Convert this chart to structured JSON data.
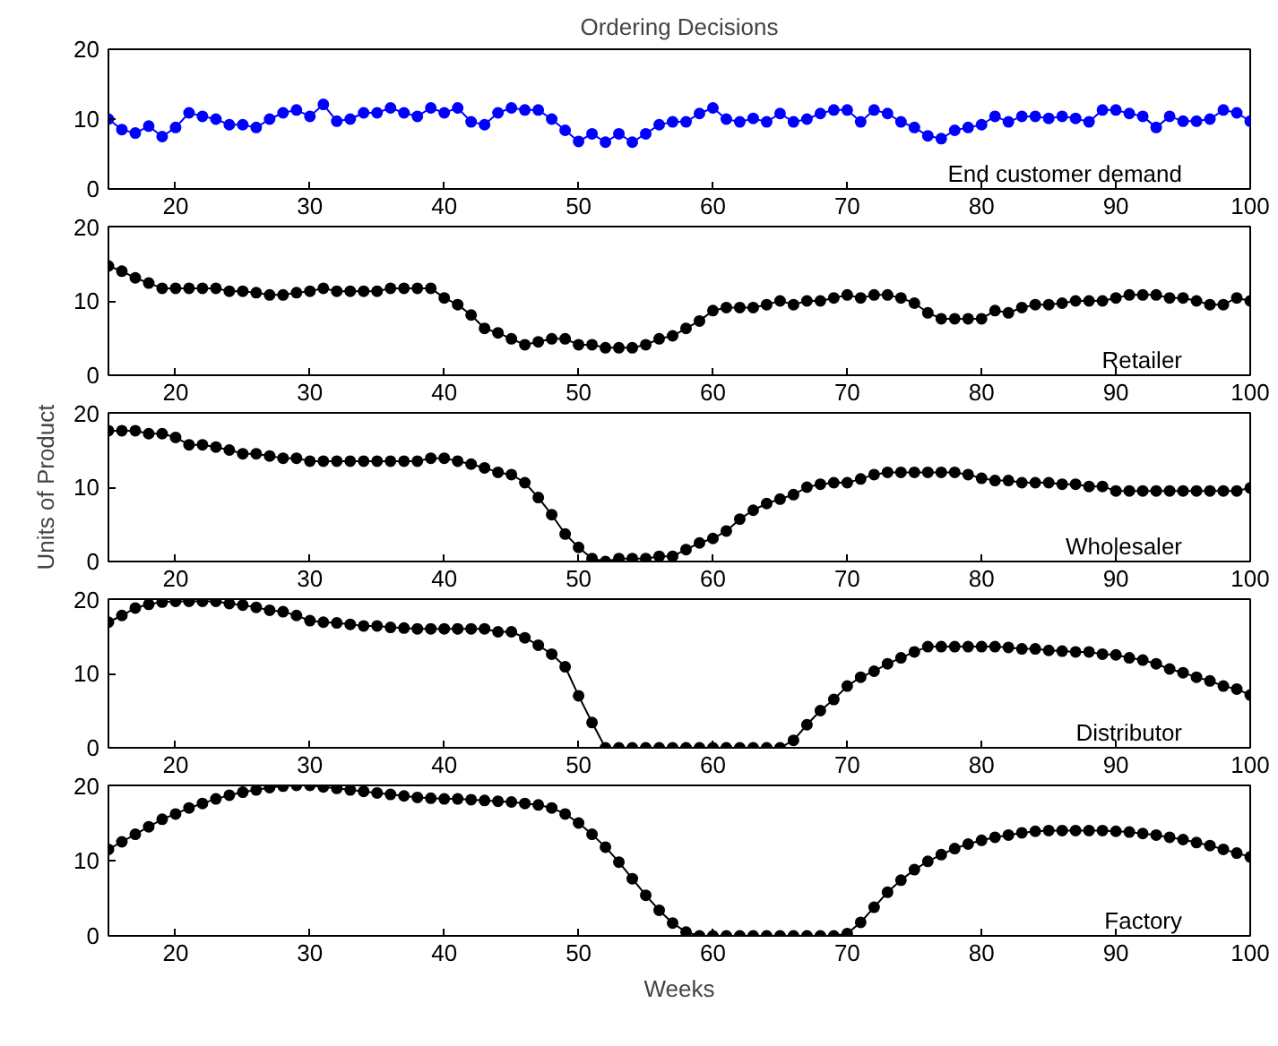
{
  "chart_data": [
    {
      "type": "line",
      "title": "Ordering Decisions",
      "marker": "circle",
      "xlim": [
        15,
        100
      ],
      "xticks": [
        20,
        30,
        40,
        50,
        60,
        70,
        80,
        90,
        100
      ],
      "ylim": [
        0,
        20
      ],
      "yticks": [
        0,
        10,
        20
      ],
      "x": [
        15,
        16,
        17,
        18,
        19,
        20,
        21,
        22,
        23,
        24,
        25,
        26,
        27,
        28,
        29,
        30,
        31,
        32,
        33,
        34,
        35,
        36,
        37,
        38,
        39,
        40,
        41,
        42,
        43,
        44,
        45,
        46,
        47,
        48,
        49,
        50,
        51,
        52,
        53,
        54,
        55,
        56,
        57,
        58,
        59,
        60,
        61,
        62,
        63,
        64,
        65,
        66,
        67,
        68,
        69,
        70,
        71,
        72,
        73,
        74,
        75,
        76,
        77,
        78,
        79,
        80,
        81,
        82,
        83,
        84,
        85,
        86,
        87,
        88,
        89,
        90,
        91,
        92,
        93,
        94,
        95,
        96,
        97,
        98,
        99,
        100
      ],
      "series": [
        {
          "name": "End customer demand",
          "color": "#0000ff",
          "values": [
            10.0,
            8.5,
            8.0,
            9.0,
            7.5,
            8.8,
            10.9,
            10.4,
            10.0,
            9.2,
            9.2,
            8.8,
            10.0,
            10.9,
            11.3,
            10.4,
            12.1,
            9.7,
            10.0,
            10.9,
            10.9,
            11.6,
            10.9,
            10.4,
            11.6,
            10.9,
            11.6,
            9.6,
            9.2,
            10.9,
            11.6,
            11.3,
            11.3,
            10.0,
            8.4,
            6.8,
            7.9,
            6.7,
            7.9,
            6.7,
            7.9,
            9.2,
            9.6,
            9.6,
            10.8,
            11.6,
            10.0,
            9.6,
            10.1,
            9.6,
            10.8,
            9.6,
            10.0,
            10.8,
            11.3,
            11.3,
            9.6,
            11.3,
            10.8,
            9.6,
            8.8,
            7.6,
            7.2,
            8.4,
            8.8,
            9.2,
            10.4,
            9.6,
            10.4,
            10.4,
            10.1,
            10.4,
            10.1,
            9.6,
            11.3,
            11.3,
            10.8,
            10.4,
            8.8,
            10.4,
            9.7,
            9.7,
            10.0,
            11.3,
            10.9,
            9.7
          ]
        }
      ]
    },
    {
      "type": "line",
      "marker": "circle",
      "xlim": [
        15,
        100
      ],
      "xticks": [
        20,
        30,
        40,
        50,
        60,
        70,
        80,
        90,
        100
      ],
      "ylim": [
        0,
        20
      ],
      "yticks": [
        0,
        10,
        20
      ],
      "x": [
        15,
        16,
        17,
        18,
        19,
        20,
        21,
        22,
        23,
        24,
        25,
        26,
        27,
        28,
        29,
        30,
        31,
        32,
        33,
        34,
        35,
        36,
        37,
        38,
        39,
        40,
        41,
        42,
        43,
        44,
        45,
        46,
        47,
        48,
        49,
        50,
        51,
        52,
        53,
        54,
        55,
        56,
        57,
        58,
        59,
        60,
        61,
        62,
        63,
        64,
        65,
        66,
        67,
        68,
        69,
        70,
        71,
        72,
        73,
        74,
        75,
        76,
        77,
        78,
        79,
        80,
        81,
        82,
        83,
        84,
        85,
        86,
        87,
        88,
        89,
        90,
        91,
        92,
        93,
        94,
        95,
        96,
        97,
        98,
        99,
        100
      ],
      "series": [
        {
          "name": "Retailer",
          "color": "#000000",
          "values": [
            14.7,
            14.0,
            13.1,
            12.4,
            11.7,
            11.7,
            11.7,
            11.7,
            11.7,
            11.3,
            11.3,
            11.1,
            10.8,
            10.8,
            11.1,
            11.3,
            11.7,
            11.3,
            11.3,
            11.3,
            11.3,
            11.7,
            11.7,
            11.7,
            11.7,
            10.4,
            9.5,
            8.1,
            6.3,
            5.7,
            4.9,
            4.1,
            4.5,
            4.9,
            4.9,
            4.1,
            4.1,
            3.7,
            3.7,
            3.7,
            4.1,
            4.9,
            5.3,
            6.3,
            7.3,
            8.7,
            9.1,
            9.1,
            9.1,
            9.5,
            10.0,
            9.5,
            10.0,
            10.0,
            10.4,
            10.8,
            10.4,
            10.8,
            10.8,
            10.4,
            9.7,
            8.4,
            7.6,
            7.6,
            7.6,
            7.6,
            8.7,
            8.4,
            9.1,
            9.5,
            9.5,
            9.7,
            10.0,
            10.0,
            10.0,
            10.4,
            10.8,
            10.8,
            10.8,
            10.4,
            10.4,
            10.0,
            9.5,
            9.5,
            10.4,
            10.0
          ]
        }
      ]
    },
    {
      "type": "line",
      "marker": "circle",
      "ylabel": "Units of Product",
      "xlim": [
        15,
        100
      ],
      "xticks": [
        20,
        30,
        40,
        50,
        60,
        70,
        80,
        90,
        100
      ],
      "ylim": [
        0,
        20
      ],
      "yticks": [
        0,
        10,
        20
      ],
      "x": [
        15,
        16,
        17,
        18,
        19,
        20,
        21,
        22,
        23,
        24,
        25,
        26,
        27,
        28,
        29,
        30,
        31,
        32,
        33,
        34,
        35,
        36,
        37,
        38,
        39,
        40,
        41,
        42,
        43,
        44,
        45,
        46,
        47,
        48,
        49,
        50,
        51,
        52,
        53,
        54,
        55,
        56,
        57,
        58,
        59,
        60,
        61,
        62,
        63,
        64,
        65,
        66,
        67,
        68,
        69,
        70,
        71,
        72,
        73,
        74,
        75,
        76,
        77,
        78,
        79,
        80,
        81,
        82,
        83,
        84,
        85,
        86,
        87,
        88,
        89,
        90,
        91,
        92,
        93,
        94,
        95,
        96,
        97,
        98,
        99,
        100
      ],
      "series": [
        {
          "name": "Wholesaler",
          "color": "#000000",
          "values": [
            17.6,
            17.6,
            17.6,
            17.2,
            17.2,
            16.7,
            15.7,
            15.7,
            15.4,
            15.0,
            14.5,
            14.5,
            14.2,
            13.9,
            13.9,
            13.5,
            13.5,
            13.5,
            13.5,
            13.5,
            13.5,
            13.5,
            13.5,
            13.5,
            13.9,
            13.9,
            13.5,
            13.1,
            12.6,
            12.0,
            11.7,
            10.6,
            8.6,
            6.3,
            3.7,
            1.9,
            0.4,
            0.0,
            0.4,
            0.4,
            0.4,
            0.7,
            0.7,
            1.6,
            2.5,
            3.1,
            4.1,
            5.7,
            6.9,
            7.8,
            8.4,
            9.0,
            10.0,
            10.4,
            10.6,
            10.6,
            11.1,
            11.7,
            12.0,
            12.0,
            12.0,
            12.0,
            12.0,
            12.0,
            11.7,
            11.2,
            10.9,
            10.9,
            10.6,
            10.6,
            10.6,
            10.4,
            10.4,
            10.1,
            10.1,
            9.5,
            9.5,
            9.5,
            9.5,
            9.5,
            9.5,
            9.5,
            9.5,
            9.5,
            9.5,
            9.9
          ]
        }
      ]
    },
    {
      "type": "line",
      "marker": "circle",
      "xlim": [
        15,
        100
      ],
      "xticks": [
        20,
        30,
        40,
        50,
        60,
        70,
        80,
        90,
        100
      ],
      "ylim": [
        0,
        20
      ],
      "yticks": [
        0,
        10,
        20
      ],
      "x": [
        15,
        16,
        17,
        18,
        19,
        20,
        21,
        22,
        23,
        24,
        25,
        26,
        27,
        28,
        29,
        30,
        31,
        32,
        33,
        34,
        35,
        36,
        37,
        38,
        39,
        40,
        41,
        42,
        43,
        44,
        45,
        46,
        47,
        48,
        49,
        50,
        51,
        52,
        53,
        54,
        55,
        56,
        57,
        58,
        59,
        60,
        61,
        62,
        63,
        64,
        65,
        66,
        67,
        68,
        69,
        70,
        71,
        72,
        73,
        74,
        75,
        76,
        77,
        78,
        79,
        80,
        81,
        82,
        83,
        84,
        85,
        86,
        87,
        88,
        89,
        90,
        91,
        92,
        93,
        94,
        95,
        96,
        97,
        98,
        99,
        100
      ],
      "series": [
        {
          "name": "Distributor",
          "color": "#000000",
          "values": [
            16.9,
            17.8,
            18.8,
            19.3,
            19.6,
            19.7,
            19.7,
            19.7,
            19.7,
            19.4,
            19.2,
            18.9,
            18.5,
            18.3,
            17.8,
            17.1,
            16.9,
            16.8,
            16.6,
            16.4,
            16.4,
            16.2,
            16.1,
            16.0,
            16.0,
            16.0,
            16.0,
            16.0,
            16.0,
            15.6,
            15.6,
            14.8,
            13.8,
            12.6,
            10.9,
            7.0,
            3.4,
            0.0,
            0.0,
            0.0,
            0.0,
            0.0,
            0.0,
            0.0,
            0.0,
            0.0,
            0.0,
            0.0,
            0.0,
            0.0,
            0.0,
            1.0,
            3.1,
            5.0,
            6.5,
            8.3,
            9.5,
            10.3,
            11.3,
            12.1,
            12.9,
            13.6,
            13.6,
            13.6,
            13.6,
            13.6,
            13.6,
            13.5,
            13.3,
            13.3,
            13.1,
            13.0,
            12.9,
            12.9,
            12.6,
            12.5,
            12.1,
            11.8,
            11.3,
            10.6,
            10.1,
            9.5,
            9.0,
            8.3,
            7.9,
            7.1
          ]
        }
      ]
    },
    {
      "type": "line",
      "marker": "circle",
      "xlabel": "Weeks",
      "xlim": [
        15,
        100
      ],
      "xticks": [
        20,
        30,
        40,
        50,
        60,
        70,
        80,
        90,
        100
      ],
      "ylim": [
        0,
        20
      ],
      "yticks": [
        0,
        10,
        20
      ],
      "x": [
        15,
        16,
        17,
        18,
        19,
        20,
        21,
        22,
        23,
        24,
        25,
        26,
        27,
        28,
        29,
        30,
        31,
        32,
        33,
        34,
        35,
        36,
        37,
        38,
        39,
        40,
        41,
        42,
        43,
        44,
        45,
        46,
        47,
        48,
        49,
        50,
        51,
        52,
        53,
        54,
        55,
        56,
        57,
        58,
        59,
        60,
        61,
        62,
        63,
        64,
        65,
        66,
        67,
        68,
        69,
        70,
        71,
        72,
        73,
        74,
        75,
        76,
        77,
        78,
        79,
        80,
        81,
        82,
        83,
        84,
        85,
        86,
        87,
        88,
        89,
        90,
        91,
        92,
        93,
        94,
        95,
        96,
        97,
        98,
        99,
        100
      ],
      "series": [
        {
          "name": "Factory",
          "color": "#000000",
          "values": [
            11.5,
            12.5,
            13.5,
            14.5,
            15.5,
            16.2,
            17.0,
            17.6,
            18.2,
            18.7,
            19.1,
            19.4,
            19.7,
            19.9,
            20.0,
            20.0,
            19.8,
            19.6,
            19.4,
            19.2,
            19.0,
            18.8,
            18.6,
            18.4,
            18.3,
            18.2,
            18.2,
            18.1,
            18.0,
            17.9,
            17.8,
            17.6,
            17.4,
            17.0,
            16.2,
            15.0,
            13.5,
            11.8,
            9.8,
            7.6,
            5.4,
            3.4,
            1.7,
            0.5,
            0.0,
            0.0,
            0.0,
            0.0,
            0.0,
            0.0,
            0.0,
            0.0,
            0.0,
            0.0,
            0.0,
            0.3,
            1.8,
            3.8,
            5.8,
            7.4,
            8.8,
            9.9,
            10.8,
            11.6,
            12.2,
            12.7,
            13.1,
            13.4,
            13.7,
            13.9,
            14.0,
            14.0,
            14.0,
            14.0,
            14.0,
            13.9,
            13.8,
            13.6,
            13.4,
            13.1,
            12.8,
            12.4,
            12.0,
            11.5,
            11.0,
            10.5
          ]
        }
      ]
    }
  ]
}
